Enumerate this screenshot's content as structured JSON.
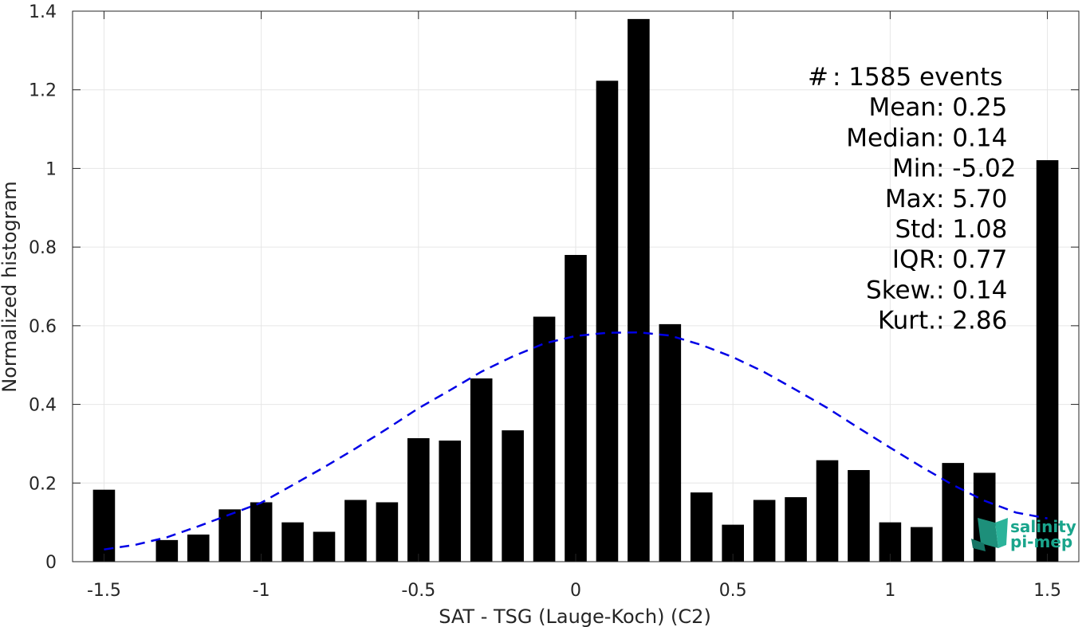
{
  "chart_data": {
    "type": "bar",
    "xlabel": "SAT - TSG (Lauge-Koch) (C2)",
    "ylabel": "Normalized histogram",
    "xlim": [
      -1.6,
      1.6
    ],
    "ylim": [
      0,
      1.4
    ],
    "bar_width": 0.07,
    "xticks": [
      -1.5,
      -1,
      -0.5,
      0,
      0.5,
      1,
      1.5
    ],
    "xtick_labels": [
      "-1.5",
      "-1",
      "-0.5",
      "0",
      "0.5",
      "1",
      "1.5"
    ],
    "yticks": [
      0,
      0.2,
      0.4,
      0.6,
      0.8,
      1,
      1.2,
      1.4
    ],
    "ytick_labels": [
      "0",
      "0.2",
      "0.4",
      "0.6",
      "0.8",
      "1",
      "1.2",
      "1.4"
    ],
    "grid": true,
    "bars": [
      {
        "x": -1.5,
        "y": 0.183
      },
      {
        "x": -1.3,
        "y": 0.055
      },
      {
        "x": -1.2,
        "y": 0.069
      },
      {
        "x": -1.1,
        "y": 0.133
      },
      {
        "x": -1.0,
        "y": 0.151
      },
      {
        "x": -0.9,
        "y": 0.1
      },
      {
        "x": -0.8,
        "y": 0.076
      },
      {
        "x": -0.7,
        "y": 0.157
      },
      {
        "x": -0.6,
        "y": 0.151
      },
      {
        "x": -0.5,
        "y": 0.314
      },
      {
        "x": -0.4,
        "y": 0.308
      },
      {
        "x": -0.3,
        "y": 0.466
      },
      {
        "x": -0.2,
        "y": 0.334
      },
      {
        "x": -0.1,
        "y": 0.623
      },
      {
        "x": 0.0,
        "y": 0.78
      },
      {
        "x": 0.1,
        "y": 1.223
      },
      {
        "x": 0.2,
        "y": 1.38
      },
      {
        "x": 0.3,
        "y": 0.604
      },
      {
        "x": 0.4,
        "y": 0.176
      },
      {
        "x": 0.5,
        "y": 0.094
      },
      {
        "x": 0.6,
        "y": 0.157
      },
      {
        "x": 0.7,
        "y": 0.164
      },
      {
        "x": 0.8,
        "y": 0.258
      },
      {
        "x": 0.9,
        "y": 0.233
      },
      {
        "x": 1.0,
        "y": 0.1
      },
      {
        "x": 1.1,
        "y": 0.088
      },
      {
        "x": 1.2,
        "y": 0.251
      },
      {
        "x": 1.3,
        "y": 0.226
      },
      {
        "x": 1.5,
        "y": 1.021
      }
    ],
    "fit_curve": {
      "style": "dashed",
      "color": "#0000e6",
      "x": [
        -1.5,
        -1.4,
        -1.3,
        -1.2,
        -1.1,
        -1.0,
        -0.9,
        -0.8,
        -0.7,
        -0.6,
        -0.5,
        -0.4,
        -0.3,
        -0.2,
        -0.1,
        0.0,
        0.1,
        0.2,
        0.3,
        0.4,
        0.5,
        0.6,
        0.7,
        0.8,
        0.9,
        1.0,
        1.1,
        1.2,
        1.3,
        1.4,
        1.5
      ],
      "y": [
        0.031,
        0.043,
        0.062,
        0.09,
        0.12,
        0.15,
        0.195,
        0.24,
        0.288,
        0.338,
        0.39,
        0.436,
        0.483,
        0.522,
        0.555,
        0.574,
        0.582,
        0.583,
        0.575,
        0.551,
        0.52,
        0.482,
        0.437,
        0.391,
        0.34,
        0.29,
        0.241,
        0.195,
        0.155,
        0.125,
        0.11
      ]
    },
    "stats": [
      {
        "key": "#  ",
        "sep": " : ",
        "value": "1585 events"
      },
      {
        "key": "Mean",
        "sep": " : ",
        "value": "0.25"
      },
      {
        "key": "Median",
        "sep": " : ",
        "value": "0.14"
      },
      {
        "key": "Min",
        "sep": " : ",
        "value": "-5.02"
      },
      {
        "key": "Max",
        "sep": " : ",
        "value": "5.70"
      },
      {
        "key": "Std",
        "sep": " : ",
        "value": "1.08"
      },
      {
        "key": "IQR",
        "sep": " : ",
        "value": "0.77"
      },
      {
        "key": "Skew.",
        "sep": " : ",
        "value": "0.14"
      },
      {
        "key": "Kurt.",
        "sep": " : ",
        "value": "2.86"
      }
    ]
  },
  "logo": {
    "line1": "salinity",
    "line2": "pi-mep",
    "color": "#1aa58c"
  },
  "colors": {
    "bar": "#000000",
    "grid": "#e6e6e6",
    "axis": "#262626"
  }
}
